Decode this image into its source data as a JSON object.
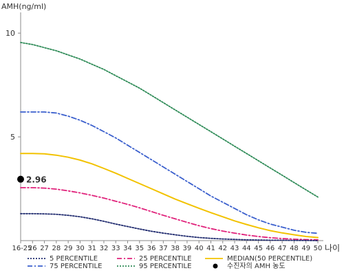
{
  "chart_data": {
    "type": "line",
    "title": "",
    "ylabel": "AMH(ng/ml)",
    "xlabel": "나이",
    "ylim": [
      0,
      11
    ],
    "yticks": [
      5,
      10
    ],
    "categories": [
      "16-25",
      "26",
      "27",
      "28",
      "29",
      "30",
      "31",
      "32",
      "33",
      "34",
      "35",
      "36",
      "37",
      "38",
      "39",
      "40",
      "41",
      "42",
      "43",
      "44",
      "45",
      "46",
      "47",
      "48",
      "49",
      "50"
    ],
    "series": [
      {
        "name": "95 PERCENTILE",
        "color": "#2e8b57",
        "dash": "dotted",
        "values": [
          9.55,
          9.45,
          9.3,
          9.15,
          8.95,
          8.75,
          8.5,
          8.25,
          7.95,
          7.65,
          7.35,
          7.0,
          6.65,
          6.3,
          5.95,
          5.6,
          5.25,
          4.9,
          4.55,
          4.2,
          3.85,
          3.5,
          3.15,
          2.8,
          2.45,
          2.1
        ]
      },
      {
        "name": "75 PERCENTILE",
        "color": "#3a5fcd",
        "dash": "dashdot",
        "values": [
          6.2,
          6.2,
          6.2,
          6.15,
          6.0,
          5.8,
          5.55,
          5.25,
          4.95,
          4.6,
          4.25,
          3.9,
          3.55,
          3.2,
          2.85,
          2.5,
          2.15,
          1.85,
          1.55,
          1.25,
          1.0,
          0.8,
          0.65,
          0.5,
          0.4,
          0.35
        ]
      },
      {
        "name": "MEDIAN(50 PERCENTILE)",
        "color": "#f2c200",
        "dash": "solid",
        "values": [
          4.2,
          4.2,
          4.18,
          4.12,
          4.02,
          3.88,
          3.7,
          3.48,
          3.25,
          3.0,
          2.75,
          2.5,
          2.25,
          2.0,
          1.78,
          1.56,
          1.35,
          1.15,
          0.95,
          0.78,
          0.62,
          0.48,
          0.37,
          0.28,
          0.2,
          0.15
        ]
      },
      {
        "name": "25 PERCENTILE",
        "color": "#e0207a",
        "dash": "dashdot",
        "values": [
          2.55,
          2.55,
          2.53,
          2.48,
          2.4,
          2.3,
          2.18,
          2.05,
          1.9,
          1.75,
          1.58,
          1.4,
          1.22,
          1.05,
          0.88,
          0.72,
          0.58,
          0.46,
          0.36,
          0.27,
          0.2,
          0.14,
          0.1,
          0.07,
          0.05,
          0.04
        ]
      },
      {
        "name": "5 PERCENTILE",
        "color": "#1f2a6e",
        "dash": "dotted",
        "values": [
          1.3,
          1.3,
          1.29,
          1.27,
          1.22,
          1.15,
          1.05,
          0.93,
          0.8,
          0.68,
          0.56,
          0.45,
          0.36,
          0.28,
          0.21,
          0.15,
          0.11,
          0.08,
          0.06,
          0.04,
          0.03,
          0.02,
          0.02,
          0.01,
          0.01,
          0.0
        ]
      }
    ],
    "point": {
      "label": "2.96",
      "legend": "수진자의 AMH 농도",
      "x": "16-25",
      "y": 2.96
    },
    "legend": {
      "placement": "bottom",
      "order": [
        "5 PERCENTILE",
        "25 PERCENTILE",
        "MEDIAN(50 PERCENTILE)",
        "75 PERCENTILE",
        "95 PERCENTILE"
      ]
    },
    "grid": false
  }
}
